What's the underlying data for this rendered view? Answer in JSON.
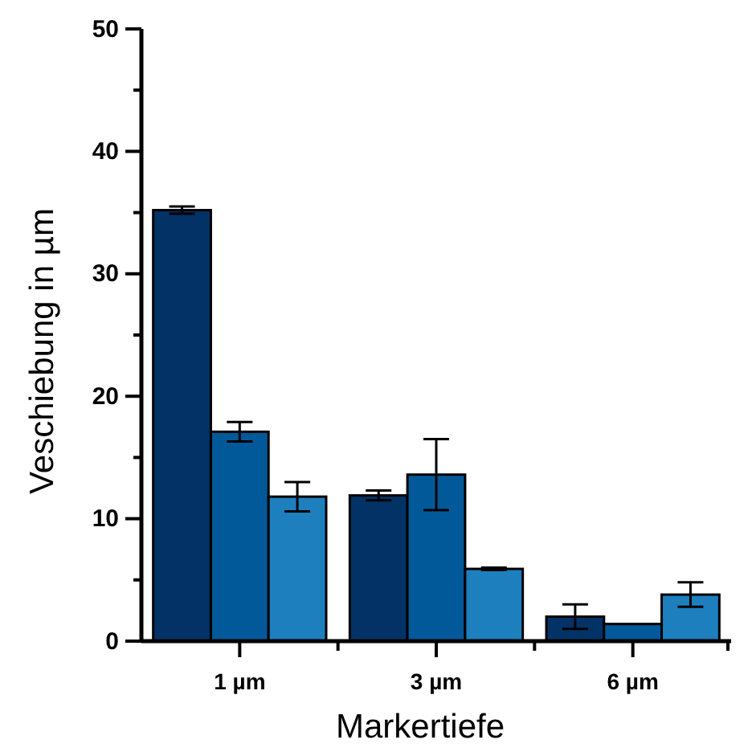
{
  "chart_data": {
    "type": "bar",
    "xlabel": "Markertiefe",
    "ylabel": "Veschiebung in µm",
    "categories": [
      "1 µm",
      "3 µm",
      "6 µm"
    ],
    "series": [
      {
        "color": "#033366",
        "values": [
          35.2,
          11.9,
          2.0
        ],
        "errors": [
          0.3,
          0.4,
          1.0
        ]
      },
      {
        "color": "#02599a",
        "values": [
          17.1,
          13.6,
          1.4
        ],
        "errors": [
          0.8,
          2.9,
          null
        ]
      },
      {
        "color": "#1e7fbf",
        "values": [
          11.8,
          5.9,
          3.8
        ],
        "errors": [
          1.2,
          0.1,
          1.0
        ]
      }
    ],
    "ylim": [
      0,
      50
    ],
    "yticks": [
      0,
      {
        "value": 5,
        "label": null
      },
      10,
      {
        "value": 15,
        "label": null
      },
      20,
      {
        "value": 25,
        "label": null
      },
      30,
      {
        "value": 35,
        "label": null
      },
      40,
      {
        "value": 45,
        "label": null
      },
      50
    ],
    "grid": false
  }
}
